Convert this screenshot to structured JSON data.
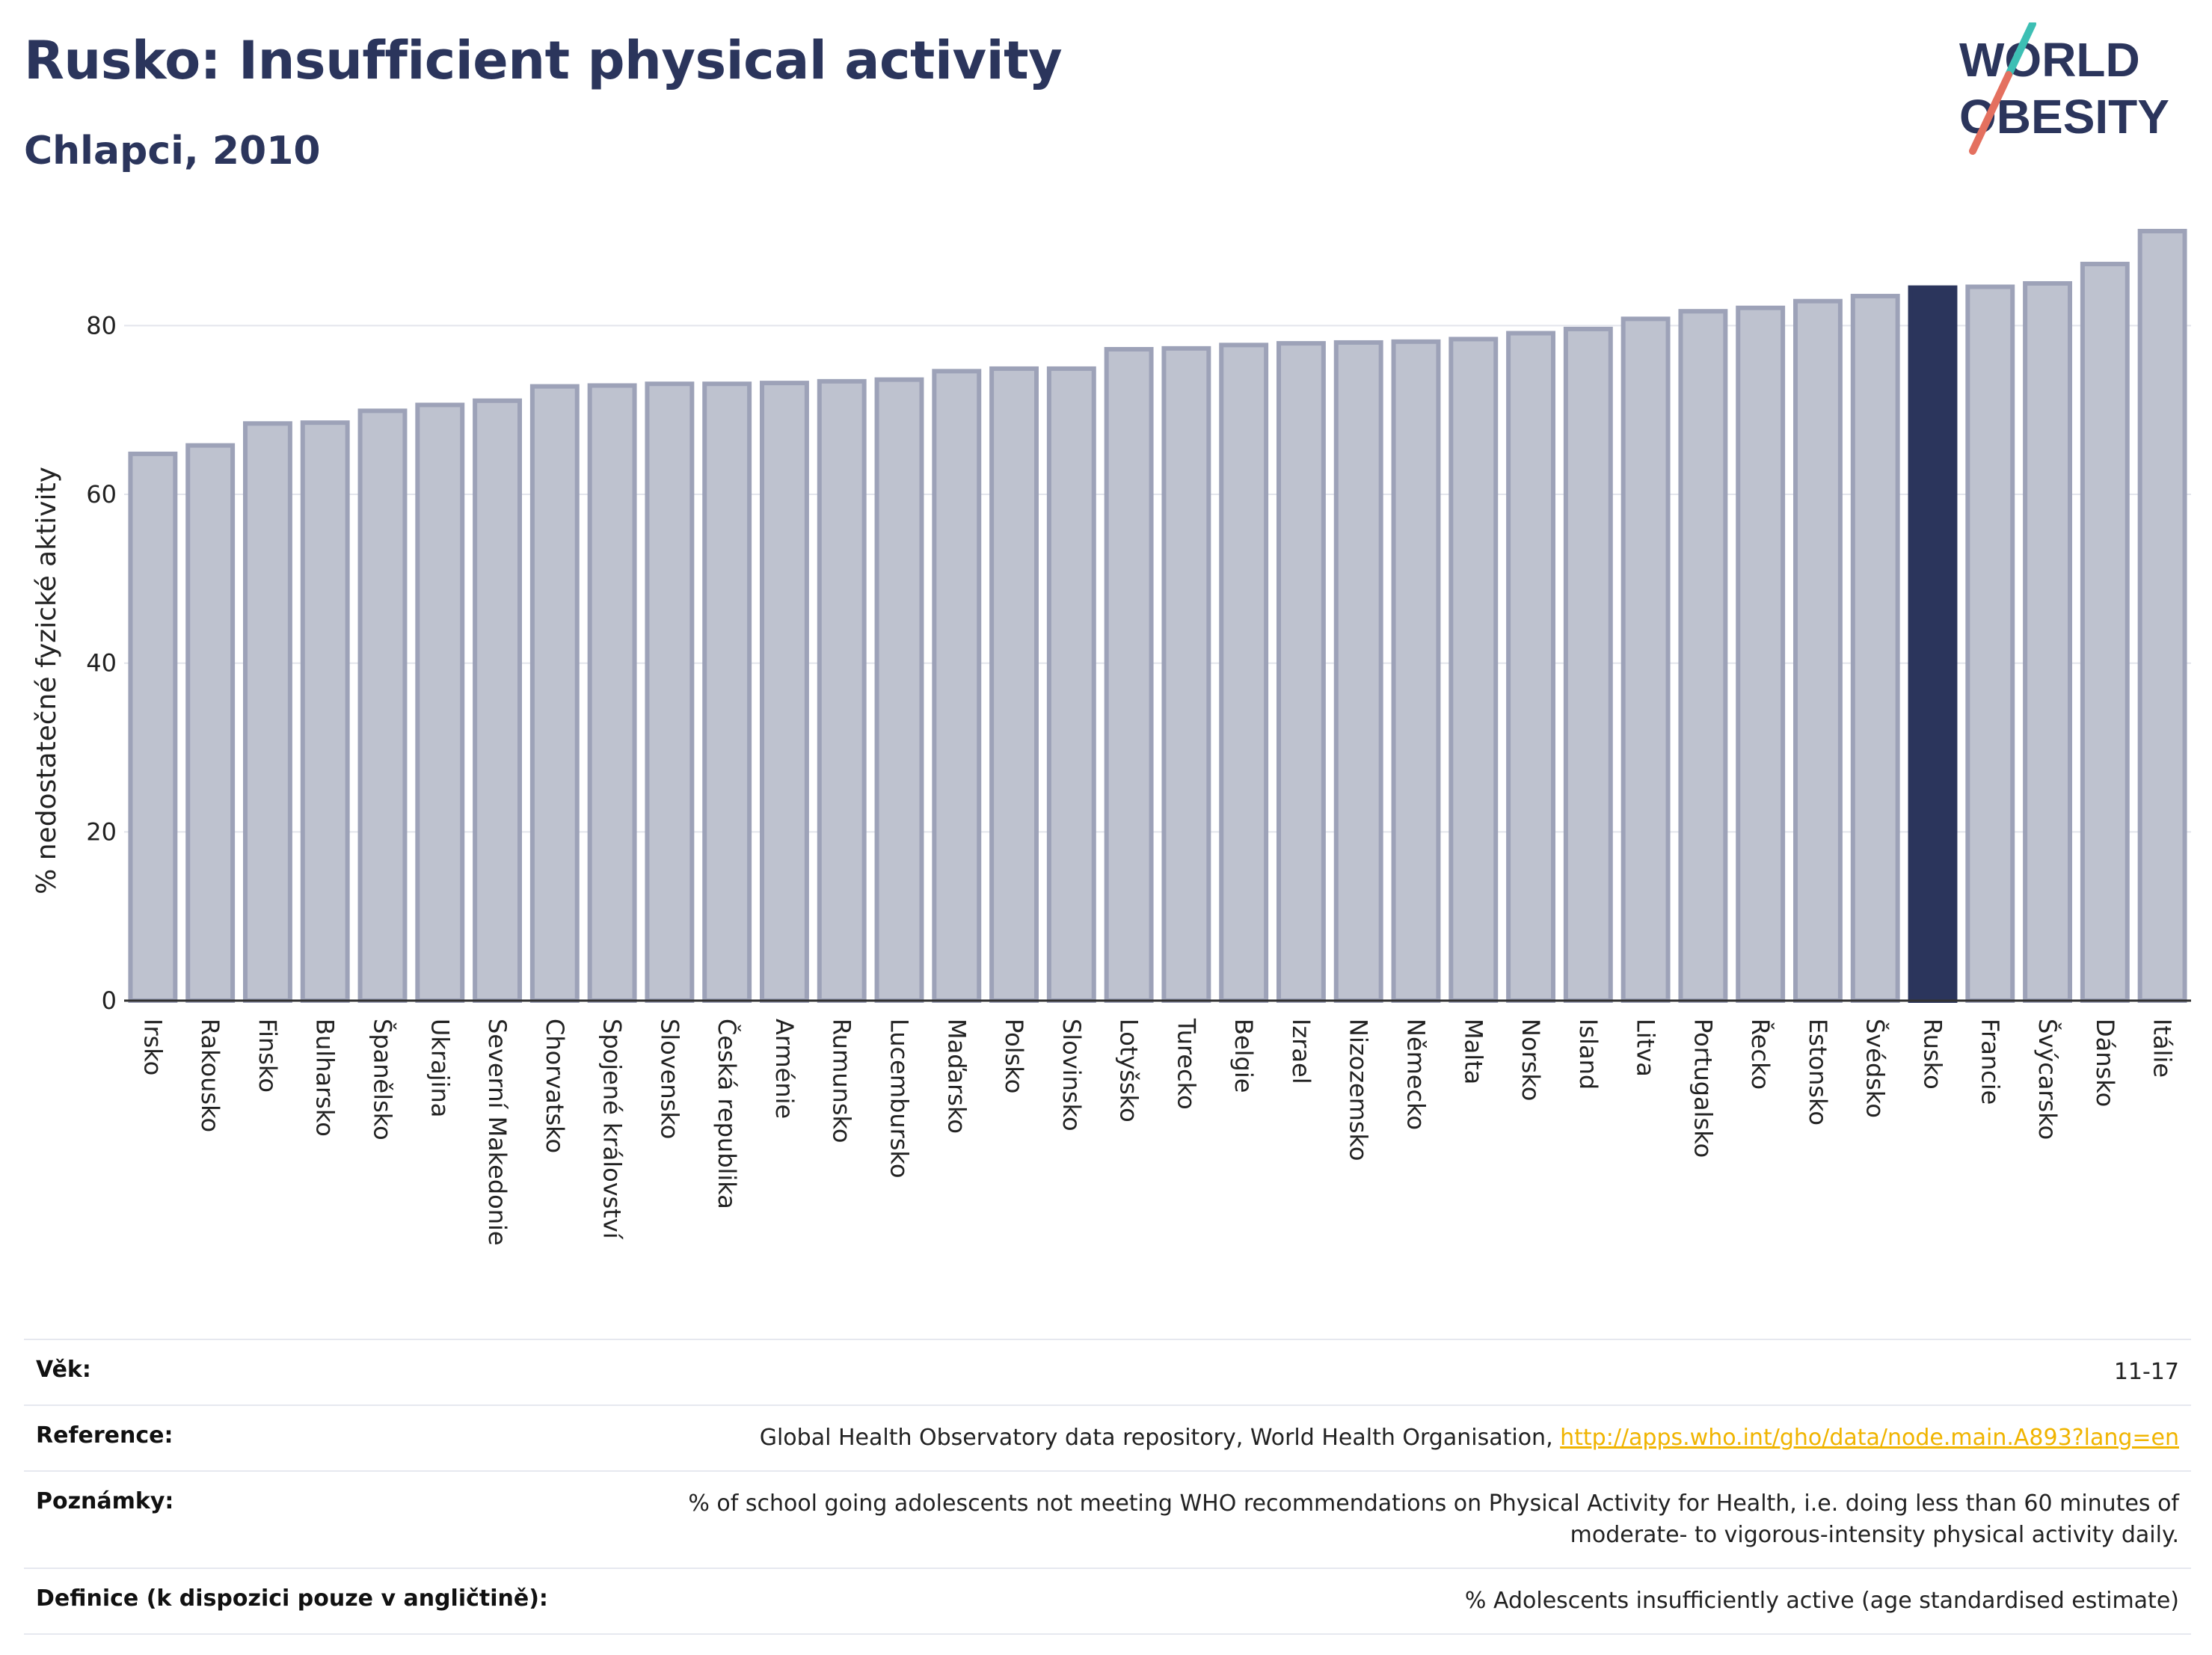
{
  "header": {
    "title": "Rusko: Insufficient physical activity",
    "subtitle": "Chlapci, 2010"
  },
  "logo": {
    "line1": "WORLD",
    "line2": "OBESITY"
  },
  "chart_data": {
    "type": "bar",
    "ylabel": "% nedostatečné fyzické aktivity",
    "ylim": [
      0,
      92
    ],
    "yticks": [
      0,
      20,
      40,
      60,
      80
    ],
    "grid": true,
    "highlight": "Rusko",
    "colors": {
      "bar": "#bec2cf",
      "bar_edge": "#9da2b8",
      "highlight": "#2b355c"
    },
    "categories": [
      "Irsko",
      "Rakousko",
      "Finsko",
      "Bulharsko",
      "Španělsko",
      "Ukrajina",
      "Severní Makedonie",
      "Chorvatsko",
      "Spojené království",
      "Slovensko",
      "Česká republika",
      "Arménie",
      "Rumunsko",
      "Lucembursko",
      "Maďarsko",
      "Polsko",
      "Slovinsko",
      "Lotyšsko",
      "Turecko",
      "Belgie",
      "Izrael",
      "Nizozemsko",
      "Německo",
      "Malta",
      "Norsko",
      "Island",
      "Litva",
      "Portugalsko",
      "Řecko",
      "Estonsko",
      "Švédsko",
      "Rusko",
      "Francie",
      "Švýcarsko",
      "Dánsko",
      "Itálie"
    ],
    "values": [
      64.8,
      65.8,
      68.4,
      68.5,
      69.9,
      70.6,
      71.1,
      72.8,
      72.9,
      73.1,
      73.1,
      73.2,
      73.4,
      73.6,
      74.6,
      74.9,
      74.9,
      77.2,
      77.3,
      77.7,
      77.9,
      78.0,
      78.1,
      78.4,
      79.1,
      79.6,
      80.8,
      81.7,
      82.1,
      82.9,
      83.5,
      84.5,
      84.6,
      85.0,
      87.3,
      91.2
    ]
  },
  "footer": {
    "rows": [
      {
        "label": "Věk:",
        "value": "11-17"
      },
      {
        "label": "Reference:",
        "value": "Global Health Observatory data repository, World Health Organisation, ",
        "link": "http://apps.who.int/gho/data/node.main.A893?lang=en"
      },
      {
        "label": "Poznámky:",
        "value": "% of school going adolescents not meeting WHO recommendations on Physical Activity for Health, i.e. doing less than 60 minutes of moderate- to vigorous-intensity physical activity daily."
      },
      {
        "label": "Definice (k dispozici pouze v angličtině):",
        "value": "% Adolescents insufficiently active (age standardised estimate)"
      }
    ]
  }
}
